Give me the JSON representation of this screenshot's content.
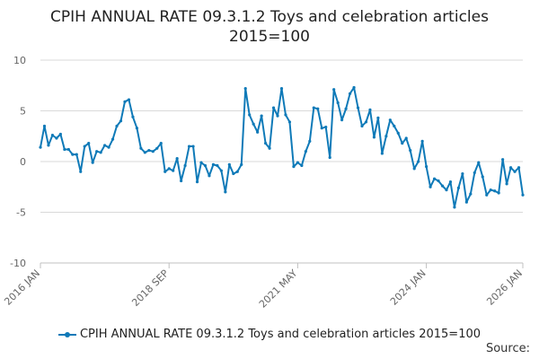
{
  "title_line1": "CPIH ANNUAL RATE 09.3.1.2 Toys and celebration articles",
  "title_line2": "2015=100",
  "source_label": "Source:",
  "colors": {
    "series": "#0f7ab8",
    "grid": "#d9d9d9",
    "axis": "#c0c0c0"
  },
  "chart_data": {
    "type": "line",
    "title": "CPIH ANNUAL RATE 09.3.1.2 Toys and celebration articles 2015=100",
    "xlabel": "",
    "ylabel": "",
    "ylim": [
      -10,
      10
    ],
    "yticks": [
      10,
      5,
      0,
      -5,
      -10
    ],
    "x_range_index": [
      0,
      120
    ],
    "xtick_labels": [
      {
        "label": "2016 JAN",
        "index": 0
      },
      {
        "label": "2018 SEP",
        "index": 32
      },
      {
        "label": "2021 MAY",
        "index": 64
      },
      {
        "label": "2024 JAN",
        "index": 96
      },
      {
        "label": "2026 JAN",
        "index": 120
      }
    ],
    "series": [
      {
        "name": "CPIH ANNUAL RATE 09.3.1.2 Toys and celebration articles 2015=100",
        "values": [
          1.4,
          3.5,
          1.6,
          2.6,
          2.3,
          2.7,
          1.2,
          1.2,
          0.7,
          0.7,
          -1.0,
          1.5,
          1.8,
          -0.1,
          1.0,
          0.9,
          1.6,
          1.4,
          2.2,
          3.5,
          4.0,
          5.9,
          6.1,
          4.4,
          3.3,
          1.3,
          0.9,
          1.1,
          1.0,
          1.3,
          1.8,
          -1.0,
          -0.7,
          -0.9,
          0.3,
          -1.9,
          -0.4,
          1.5,
          1.5,
          -2.0,
          -0.1,
          -0.4,
          -1.4,
          -0.3,
          -0.4,
          -0.9,
          -3.0,
          -0.3,
          -1.2,
          -1.0,
          -0.3,
          7.2,
          4.6,
          3.7,
          2.9,
          4.5,
          1.8,
          1.3,
          5.3,
          4.5,
          7.2,
          4.6,
          3.9,
          -0.5,
          -0.1,
          -0.4,
          1.0,
          2.0,
          5.3,
          5.2,
          3.3,
          3.4,
          0.4,
          7.1,
          5.8,
          4.1,
          5.2,
          6.7,
          7.3,
          5.3,
          3.5,
          3.9,
          5.1,
          2.4,
          4.3,
          0.8,
          2.5,
          4.1,
          3.5,
          2.8,
          1.8,
          2.3,
          1.1,
          -0.7,
          0.0,
          2.0,
          -0.5,
          -2.5,
          -1.7,
          -1.9,
          -2.4,
          -2.8,
          -2.0,
          -4.5,
          -2.6,
          -1.2,
          -4.0,
          -3.2,
          -1.1,
          -0.1,
          -1.5,
          -3.3,
          -2.8,
          -2.9,
          -3.1,
          0.2,
          -2.2,
          -0.6,
          -1.0,
          -0.6,
          -3.3
        ]
      }
    ]
  }
}
